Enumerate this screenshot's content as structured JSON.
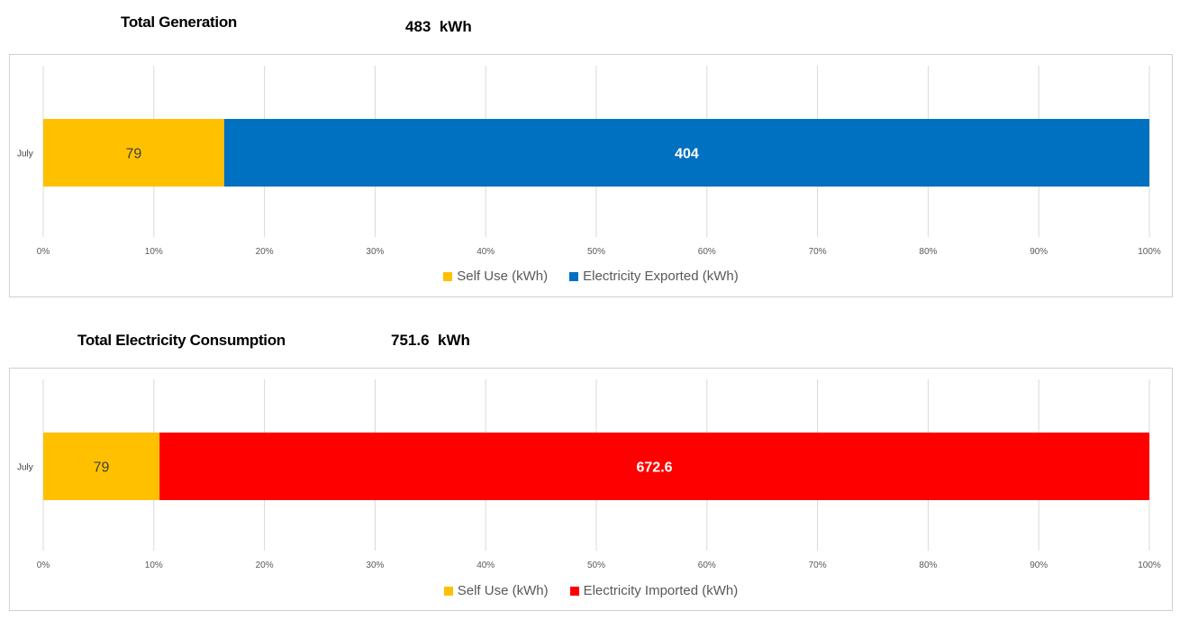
{
  "generation": {
    "heading": "Total Generation",
    "total_value": "483",
    "total_unit": "kWh"
  },
  "consumption": {
    "heading": "Total Electricity Consumption",
    "total_value": "751.6",
    "total_unit": "kWh"
  },
  "chart_data": [
    {
      "type": "bar",
      "orientation": "horizontal",
      "stacked": "100%",
      "categories": [
        "July"
      ],
      "series": [
        {
          "name": "Self Use (kWh)",
          "values": [
            79
          ],
          "color": "#FFC000",
          "label_color": "#404040"
        },
        {
          "name": "Electricity Exported (kWh)",
          "values": [
            404
          ],
          "color": "#0070C0",
          "label_color": "#FFFFFF"
        }
      ],
      "x_ticks": [
        "0%",
        "10%",
        "20%",
        "30%",
        "40%",
        "50%",
        "60%",
        "70%",
        "80%",
        "90%",
        "100%"
      ],
      "xlim": [
        0,
        100
      ],
      "grid": true,
      "legend_position": "bottom"
    },
    {
      "type": "bar",
      "orientation": "horizontal",
      "stacked": "100%",
      "categories": [
        "July"
      ],
      "series": [
        {
          "name": "Self Use (kWh)",
          "values": [
            79
          ],
          "color": "#FFC000",
          "label_color": "#404040"
        },
        {
          "name": "Electricity Imported (kWh)",
          "values": [
            672.6
          ],
          "color": "#FF0000",
          "label_color": "#FFFFFF"
        }
      ],
      "x_ticks": [
        "0%",
        "10%",
        "20%",
        "30%",
        "40%",
        "50%",
        "60%",
        "70%",
        "80%",
        "90%",
        "100%"
      ],
      "xlim": [
        0,
        100
      ],
      "grid": true,
      "legend_position": "bottom"
    }
  ]
}
